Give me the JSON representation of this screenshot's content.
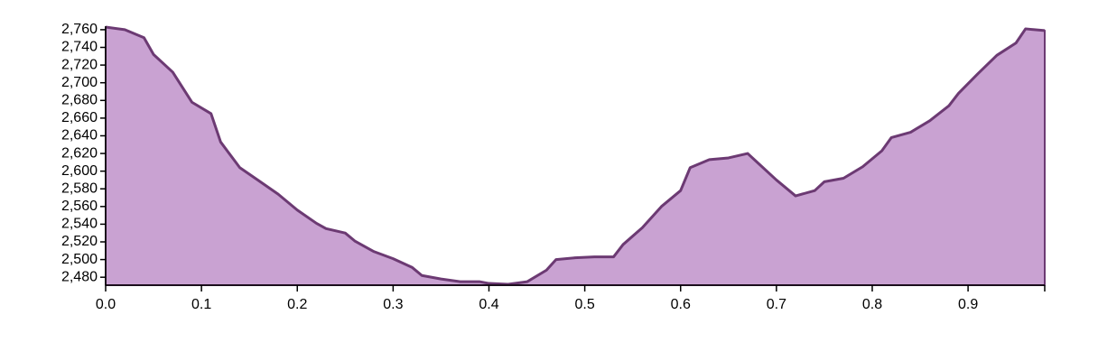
{
  "chart_data": {
    "type": "area",
    "title": "",
    "xlabel": "",
    "ylabel": "",
    "xlim": [
      0,
      0.98
    ],
    "ylim": [
      2471,
      2764
    ],
    "grid": false,
    "legend": "none",
    "colors": {
      "fill": "#c9a2d2",
      "stroke": "#6c3a73",
      "axis": "#000000"
    },
    "x_ticks": [
      {
        "value": 0.0,
        "label": "0.0"
      },
      {
        "value": 0.1,
        "label": "0.1"
      },
      {
        "value": 0.2,
        "label": "0.2"
      },
      {
        "value": 0.3,
        "label": "0.3"
      },
      {
        "value": 0.4,
        "label": "0.4"
      },
      {
        "value": 0.5,
        "label": "0.5"
      },
      {
        "value": 0.6,
        "label": "0.6"
      },
      {
        "value": 0.7,
        "label": "0.7"
      },
      {
        "value": 0.8,
        "label": "0.8"
      },
      {
        "value": 0.9,
        "label": "0.9"
      }
    ],
    "y_ticks": [
      {
        "value": 2480,
        "label": "2,480"
      },
      {
        "value": 2500,
        "label": "2,500"
      },
      {
        "value": 2520,
        "label": "2,520"
      },
      {
        "value": 2540,
        "label": "2,540"
      },
      {
        "value": 2560,
        "label": "2,560"
      },
      {
        "value": 2580,
        "label": "2,580"
      },
      {
        "value": 2600,
        "label": "2,600"
      },
      {
        "value": 2620,
        "label": "2,620"
      },
      {
        "value": 2640,
        "label": "2,640"
      },
      {
        "value": 2660,
        "label": "2,660"
      },
      {
        "value": 2680,
        "label": "2,680"
      },
      {
        "value": 2700,
        "label": "2,700"
      },
      {
        "value": 2720,
        "label": "2,720"
      },
      {
        "value": 2740,
        "label": "2,740"
      },
      {
        "value": 2760,
        "label": "2,760"
      }
    ],
    "x": [
      0.0,
      0.02,
      0.04,
      0.05,
      0.07,
      0.09,
      0.11,
      0.12,
      0.14,
      0.16,
      0.18,
      0.2,
      0.22,
      0.23,
      0.25,
      0.26,
      0.28,
      0.3,
      0.32,
      0.33,
      0.35,
      0.37,
      0.39,
      0.4,
      0.42,
      0.44,
      0.46,
      0.47,
      0.49,
      0.51,
      0.53,
      0.54,
      0.56,
      0.58,
      0.6,
      0.61,
      0.63,
      0.65,
      0.67,
      0.68,
      0.7,
      0.72,
      0.74,
      0.75,
      0.77,
      0.79,
      0.81,
      0.82,
      0.84,
      0.86,
      0.88,
      0.89,
      0.91,
      0.93,
      0.95,
      0.96,
      0.98
    ],
    "y": [
      2763,
      2760,
      2751,
      2732,
      2712,
      2678,
      2665,
      2633,
      2604,
      2589,
      2574,
      2556,
      2541,
      2535,
      2530,
      2521,
      2509,
      2501,
      2491,
      2482,
      2478,
      2475,
      2475,
      2473,
      2472,
      2475,
      2488,
      2500,
      2502,
      2503,
      2503,
      2517,
      2536,
      2560,
      2578,
      2604,
      2613,
      2615,
      2620,
      2610,
      2590,
      2572,
      2578,
      2588,
      2592,
      2605,
      2623,
      2638,
      2644,
      2657,
      2674,
      2688,
      2710,
      2731,
      2745,
      2761,
      2759
    ]
  }
}
